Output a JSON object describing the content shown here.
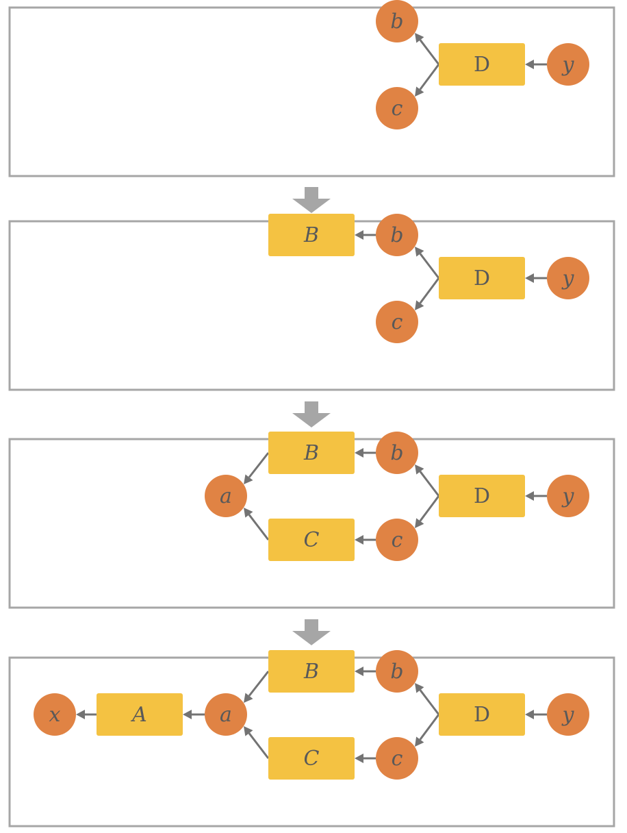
{
  "panels": [
    {
      "name": "stage-1",
      "nodes": [
        {
          "id": "b",
          "label": "b",
          "shape": "circle",
          "italic": true
        },
        {
          "id": "c",
          "label": "c",
          "shape": "circle",
          "italic": true
        },
        {
          "id": "D",
          "label": "D",
          "shape": "box",
          "italic": false
        },
        {
          "id": "y",
          "label": "y",
          "shape": "circle",
          "italic": true
        }
      ],
      "edges": [
        {
          "from": "y",
          "to": "D"
        },
        {
          "from": "D",
          "to": "b"
        },
        {
          "from": "D",
          "to": "c"
        }
      ]
    },
    {
      "name": "stage-2",
      "nodes": [
        {
          "id": "B",
          "label": "B",
          "shape": "box",
          "italic": true
        },
        {
          "id": "b",
          "label": "b",
          "shape": "circle",
          "italic": true
        },
        {
          "id": "c",
          "label": "c",
          "shape": "circle",
          "italic": true
        },
        {
          "id": "D",
          "label": "D",
          "shape": "box",
          "italic": false
        },
        {
          "id": "y",
          "label": "y",
          "shape": "circle",
          "italic": true
        }
      ],
      "edges": [
        {
          "from": "y",
          "to": "D"
        },
        {
          "from": "D",
          "to": "b"
        },
        {
          "from": "D",
          "to": "c"
        },
        {
          "from": "b",
          "to": "B"
        }
      ]
    },
    {
      "name": "stage-3",
      "nodes": [
        {
          "id": "a",
          "label": "a",
          "shape": "circle",
          "italic": true
        },
        {
          "id": "B",
          "label": "B",
          "shape": "box",
          "italic": true
        },
        {
          "id": "C",
          "label": "C",
          "shape": "box",
          "italic": true
        },
        {
          "id": "b",
          "label": "b",
          "shape": "circle",
          "italic": true
        },
        {
          "id": "c",
          "label": "c",
          "shape": "circle",
          "italic": true
        },
        {
          "id": "D",
          "label": "D",
          "shape": "box",
          "italic": false
        },
        {
          "id": "y",
          "label": "y",
          "shape": "circle",
          "italic": true
        }
      ],
      "edges": [
        {
          "from": "y",
          "to": "D"
        },
        {
          "from": "D",
          "to": "b"
        },
        {
          "from": "D",
          "to": "c"
        },
        {
          "from": "b",
          "to": "B"
        },
        {
          "from": "c",
          "to": "C"
        },
        {
          "from": "B",
          "to": "a"
        },
        {
          "from": "C",
          "to": "a"
        }
      ]
    },
    {
      "name": "stage-4",
      "nodes": [
        {
          "id": "x",
          "label": "x",
          "shape": "circle",
          "italic": true
        },
        {
          "id": "A",
          "label": "A",
          "shape": "box",
          "italic": true
        },
        {
          "id": "a",
          "label": "a",
          "shape": "circle",
          "italic": true
        },
        {
          "id": "B",
          "label": "B",
          "shape": "box",
          "italic": true
        },
        {
          "id": "C",
          "label": "C",
          "shape": "box",
          "italic": true
        },
        {
          "id": "b",
          "label": "b",
          "shape": "circle",
          "italic": true
        },
        {
          "id": "c",
          "label": "c",
          "shape": "circle",
          "italic": true
        },
        {
          "id": "D",
          "label": "D",
          "shape": "box",
          "italic": false
        },
        {
          "id": "y",
          "label": "y",
          "shape": "circle",
          "italic": true
        }
      ],
      "edges": [
        {
          "from": "y",
          "to": "D"
        },
        {
          "from": "D",
          "to": "b"
        },
        {
          "from": "D",
          "to": "c"
        },
        {
          "from": "b",
          "to": "B"
        },
        {
          "from": "c",
          "to": "C"
        },
        {
          "from": "B",
          "to": "a"
        },
        {
          "from": "C",
          "to": "a"
        },
        {
          "from": "a",
          "to": "A"
        },
        {
          "from": "A",
          "to": "x"
        }
      ]
    }
  ],
  "colors": {
    "box_fill": "#f4c242",
    "circle_fill": "#e08344",
    "label_text": "#595959",
    "edge": "#737373",
    "frame": "#a6a6a6",
    "step_arrow": "#a6a6a6"
  }
}
